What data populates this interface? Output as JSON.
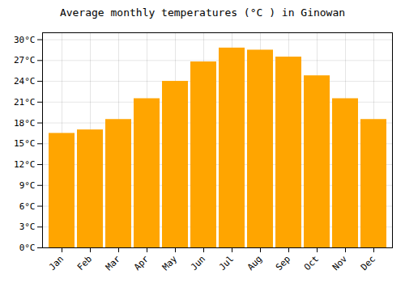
{
  "chart_data": {
    "type": "bar",
    "title": "Average monthly temperatures (°C ) in Ginowan",
    "categories": [
      "Jan",
      "Feb",
      "Mar",
      "Apr",
      "May",
      "Jun",
      "Jul",
      "Aug",
      "Sep",
      "Oct",
      "Nov",
      "Dec"
    ],
    "values": [
      16.5,
      17.0,
      18.5,
      21.5,
      24.0,
      26.8,
      28.8,
      28.5,
      27.5,
      24.8,
      21.5,
      18.5
    ],
    "color": "#FFA500",
    "ylim": [
      0,
      31
    ],
    "yticks": [
      {
        "value": 0,
        "label": "0°C"
      },
      {
        "value": 3,
        "label": "3°C"
      },
      {
        "value": 6,
        "label": "6°C"
      },
      {
        "value": 9,
        "label": "9°C"
      },
      {
        "value": 12,
        "label": "12°C"
      },
      {
        "value": 15,
        "label": "15°C"
      },
      {
        "value": 18,
        "label": "18°C"
      },
      {
        "value": 21,
        "label": "21°C"
      },
      {
        "value": 24,
        "label": "24°C"
      },
      {
        "value": 27,
        "label": "27°C"
      },
      {
        "value": 30,
        "label": "30°C"
      }
    ],
    "grid": true
  }
}
